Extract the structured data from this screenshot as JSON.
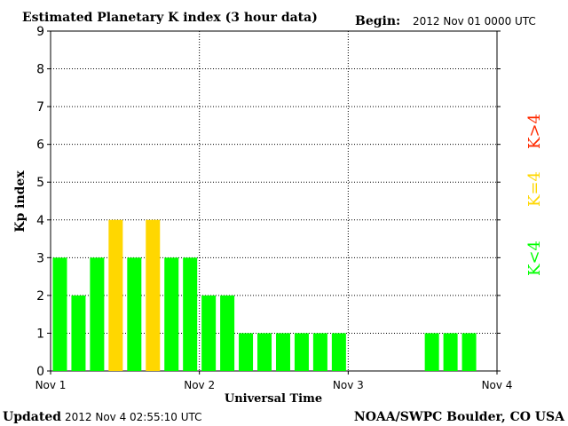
{
  "header": {
    "title": "Estimated Planetary K index (3 hour data)",
    "begin_label": "Begin:",
    "begin_value": "2012 Nov 01 0000 UTC"
  },
  "footer": {
    "updated_label": "Updated",
    "updated_value": "2012 Nov  4 02:55:10 UTC",
    "credit": "NOAA/SWPC Boulder, CO USA"
  },
  "legend": {
    "low": "K<4",
    "mid": "K=4",
    "high": "K>4"
  },
  "colors": {
    "low": "#00ff00",
    "mid": "#ffd700",
    "high": "#ff2a00",
    "background": "#ffffff",
    "axis": "#000000",
    "grid": "#000000"
  },
  "chart_data": {
    "type": "bar",
    "xlabel": "Universal Time",
    "ylabel": "Kp index",
    "ylim": [
      0,
      9
    ],
    "yticks": [
      "0",
      "1",
      "2",
      "3",
      "4",
      "5",
      "6",
      "7",
      "8",
      "9"
    ],
    "x_tick_labels": [
      "Nov 1",
      "Nov 2",
      "Nov 3",
      "Nov 4"
    ],
    "grid": true,
    "values": [
      3,
      2,
      3,
      4,
      3,
      4,
      3,
      3,
      2,
      2,
      1,
      1,
      1,
      1,
      1,
      1,
      null,
      null,
      null,
      null,
      1,
      1,
      1,
      null
    ]
  }
}
